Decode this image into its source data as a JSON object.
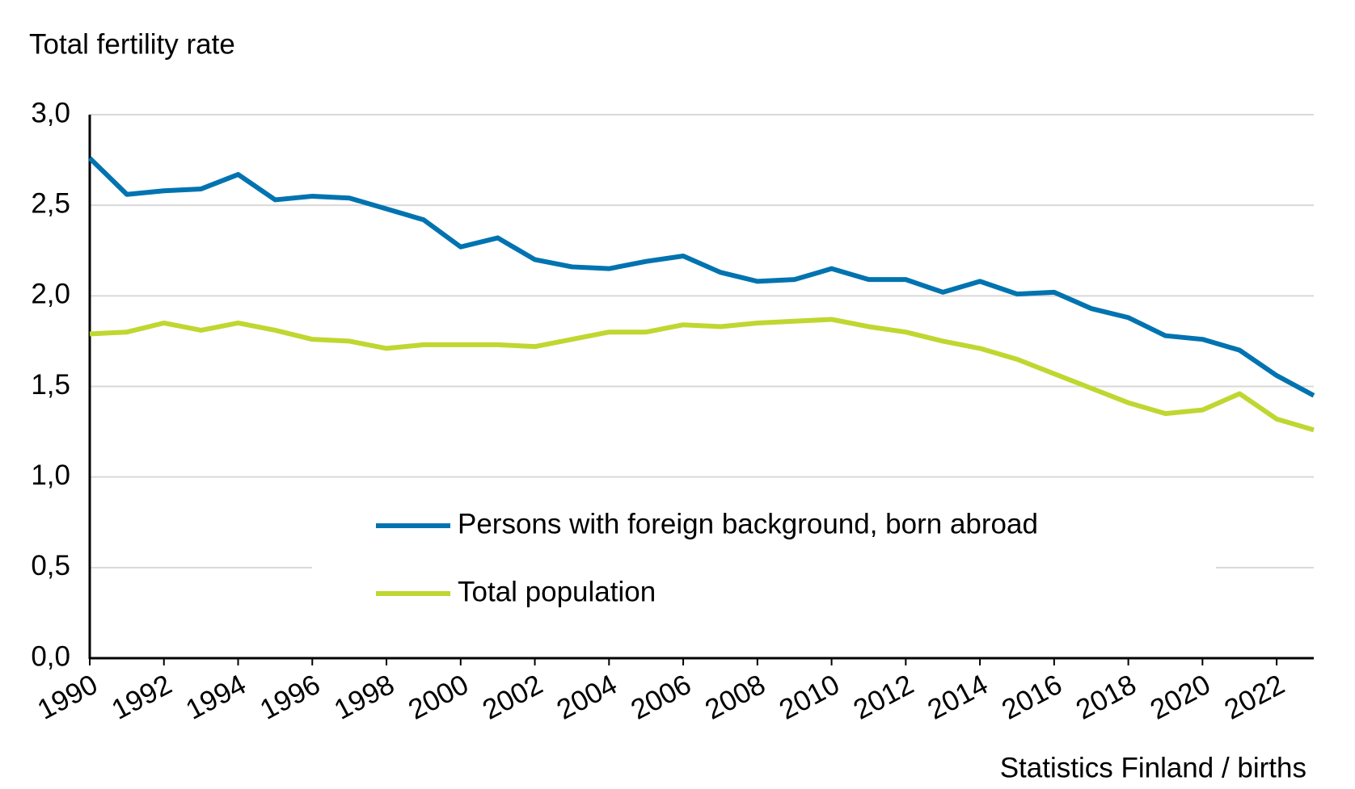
{
  "chart_data": {
    "type": "line",
    "y_label": "Total fertility rate",
    "source": "Statistics Finland / births",
    "x": [
      1990,
      1991,
      1992,
      1993,
      1994,
      1995,
      1996,
      1997,
      1998,
      1999,
      2000,
      2001,
      2002,
      2003,
      2004,
      2005,
      2006,
      2007,
      2008,
      2009,
      2010,
      2011,
      2012,
      2013,
      2014,
      2015,
      2016,
      2017,
      2018,
      2019,
      2020,
      2021,
      2022,
      2023
    ],
    "xlim": [
      1990,
      2023
    ],
    "xticks": [
      1990,
      1992,
      1994,
      1996,
      1998,
      2000,
      2002,
      2004,
      2006,
      2008,
      2010,
      2012,
      2014,
      2016,
      2018,
      2020,
      2022
    ],
    "ylim": [
      0,
      3
    ],
    "yticks": [
      {
        "value": 0,
        "label": "0,0"
      },
      {
        "value": 0.5,
        "label": "0,5"
      },
      {
        "value": 1,
        "label": "1,0"
      },
      {
        "value": 1.5,
        "label": "1,5"
      },
      {
        "value": 2,
        "label": "2,0"
      },
      {
        "value": 2.5,
        "label": "2,5"
      },
      {
        "value": 3,
        "label": "3,0"
      }
    ],
    "grid": true,
    "series": [
      {
        "name": "Persons with foreign background, born abroad",
        "color": "#0073b0",
        "values": [
          2.76,
          2.56,
          2.58,
          2.59,
          2.67,
          2.53,
          2.55,
          2.54,
          2.48,
          2.42,
          2.27,
          2.32,
          2.2,
          2.16,
          2.15,
          2.19,
          2.22,
          2.13,
          2.08,
          2.09,
          2.15,
          2.09,
          2.09,
          2.02,
          2.08,
          2.01,
          2.02,
          1.93,
          1.88,
          1.78,
          1.76,
          1.7,
          1.56,
          1.45
        ]
      },
      {
        "name": "Total population",
        "color": "#bfd730",
        "values": [
          1.79,
          1.8,
          1.85,
          1.81,
          1.85,
          1.81,
          1.76,
          1.75,
          1.71,
          1.73,
          1.73,
          1.73,
          1.72,
          1.76,
          1.8,
          1.8,
          1.84,
          1.83,
          1.85,
          1.86,
          1.87,
          1.83,
          1.8,
          1.75,
          1.71,
          1.65,
          1.57,
          1.49,
          1.41,
          1.35,
          1.37,
          1.46,
          1.32,
          1.26
        ]
      }
    ]
  }
}
